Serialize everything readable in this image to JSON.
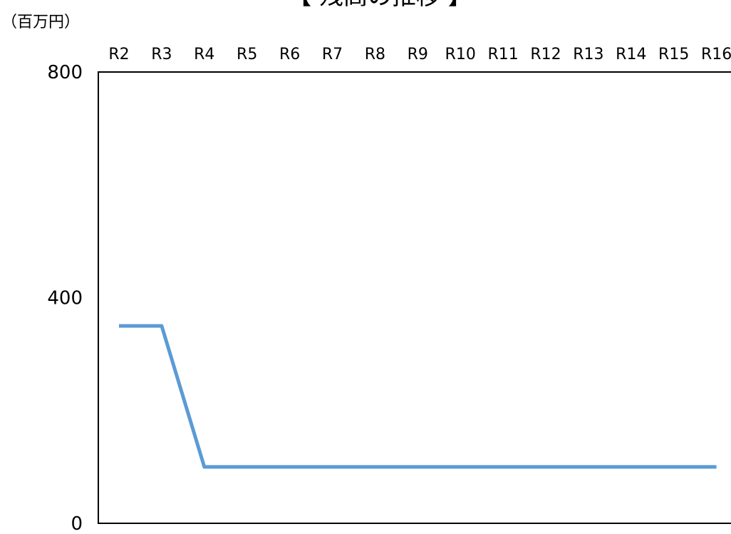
{
  "chart_data": {
    "type": "line",
    "title": "【 残高の推移 】",
    "unit_label": "（百万円）",
    "categories": [
      "R2",
      "R3",
      "R4",
      "R5",
      "R6",
      "R7",
      "R8",
      "R9",
      "R10",
      "R11",
      "R12",
      "R13",
      "R14",
      "R15",
      "R16"
    ],
    "series": [
      {
        "values": [
          350,
          350,
          100,
          100,
          100,
          100,
          100,
          100,
          100,
          100,
          100,
          100,
          100,
          100,
          100
        ],
        "color": "#5b9bd5"
      }
    ],
    "yticks": [
      0,
      400,
      800
    ],
    "ylim": [
      0,
      800
    ],
    "x_axis_position": "top",
    "grid": false,
    "legend": "none"
  }
}
